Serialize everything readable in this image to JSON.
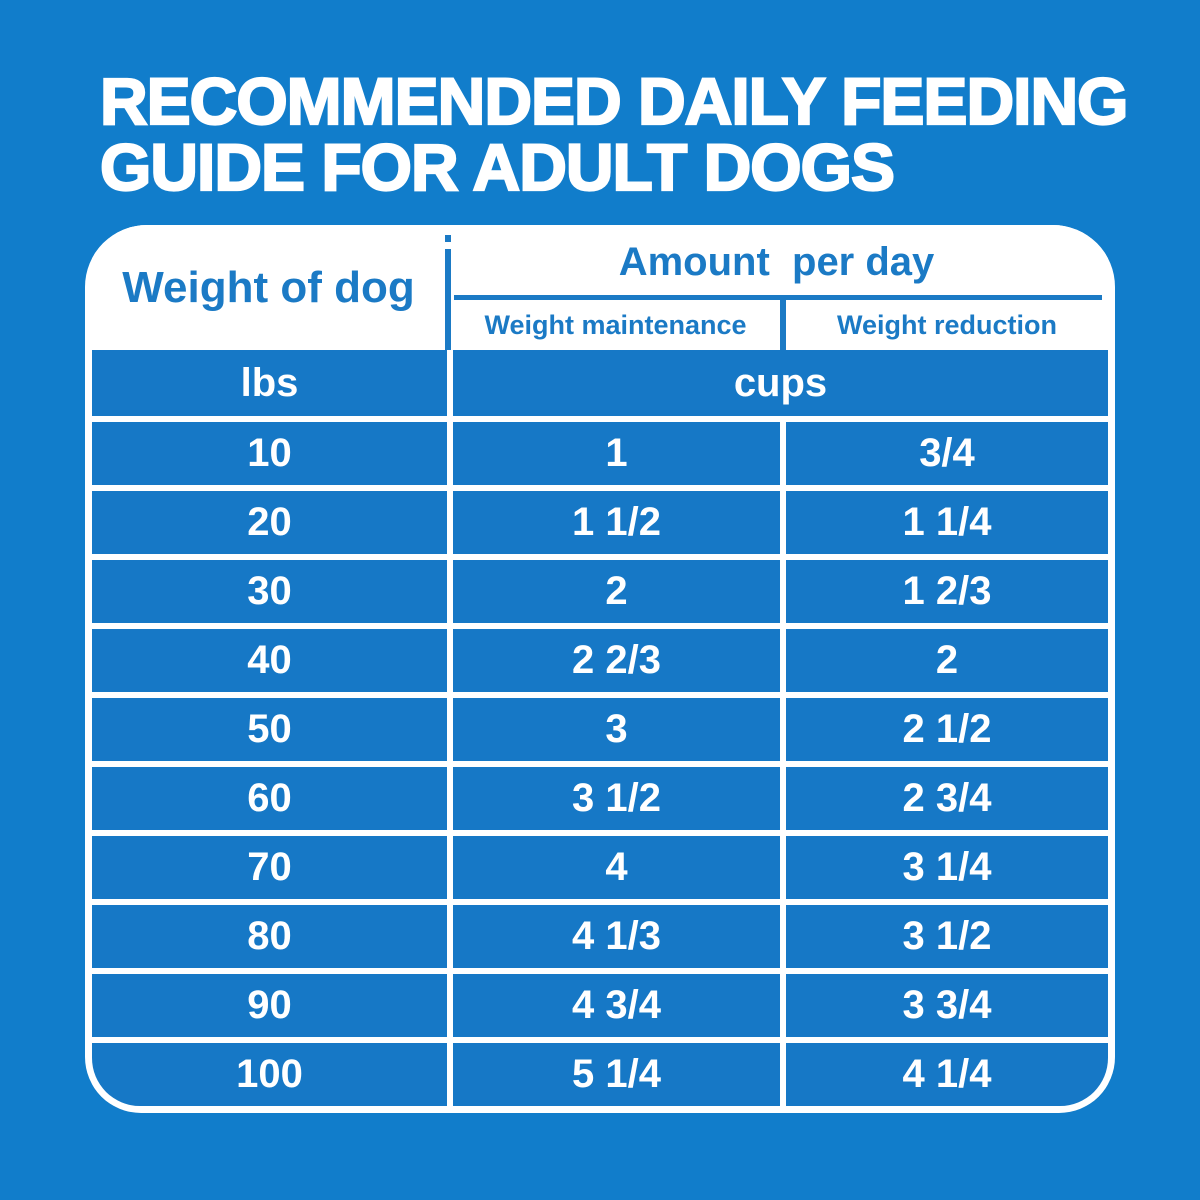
{
  "title": {
    "line1": "RECOMMENDED DAILY FEEDING",
    "line2": "GUIDE FOR ADULT DOGS"
  },
  "table": {
    "weight_col_header": "Weight of dog",
    "amount_header": "Amount  per day",
    "maintenance_header": "Weight maintenance",
    "reduction_header": "Weight reduction",
    "weight_unit": "lbs",
    "amount_unit": "cups",
    "rows": [
      {
        "lbs": "10",
        "maintenance": "1",
        "reduction": "3/4"
      },
      {
        "lbs": "20",
        "maintenance": "1 1/2",
        "reduction": "1 1/4"
      },
      {
        "lbs": "30",
        "maintenance": "2",
        "reduction": "1 2/3"
      },
      {
        "lbs": "40",
        "maintenance": "2 2/3",
        "reduction": "2"
      },
      {
        "lbs": "50",
        "maintenance": "3",
        "reduction": "2 1/2"
      },
      {
        "lbs": "60",
        "maintenance": "3 1/2",
        "reduction": "2 3/4"
      },
      {
        "lbs": "70",
        "maintenance": "4",
        "reduction": "3 1/4"
      },
      {
        "lbs": "80",
        "maintenance": "4 1/3",
        "reduction": "3 1/2"
      },
      {
        "lbs": "90",
        "maintenance": "4 3/4",
        "reduction": "3 3/4"
      },
      {
        "lbs": "100",
        "maintenance": "5 1/4",
        "reduction": "4 1/4"
      }
    ]
  },
  "colors": {
    "background_blue": "#117DCB",
    "cell_blue": "#1678C6",
    "header_text_blue": "#1B7AC5",
    "white": "#FFFFFF"
  },
  "chart_data": {
    "type": "table",
    "title": "Recommended daily feeding guide for adult dogs",
    "columns": [
      "Weight of dog (lbs)",
      "Weight maintenance (cups)",
      "Weight reduction (cups)"
    ],
    "rows": [
      [
        10,
        "1",
        "3/4"
      ],
      [
        20,
        "1 1/2",
        "1 1/4"
      ],
      [
        30,
        "2",
        "1 2/3"
      ],
      [
        40,
        "2 2/3",
        "2"
      ],
      [
        50,
        "3",
        "2 1/2"
      ],
      [
        60,
        "3 1/2",
        "2 3/4"
      ],
      [
        70,
        "4",
        "3 1/4"
      ],
      [
        80,
        "4 1/3",
        "3 1/2"
      ],
      [
        90,
        "4 3/4",
        "3 3/4"
      ],
      [
        100,
        "5 1/4",
        "4 1/4"
      ]
    ]
  }
}
